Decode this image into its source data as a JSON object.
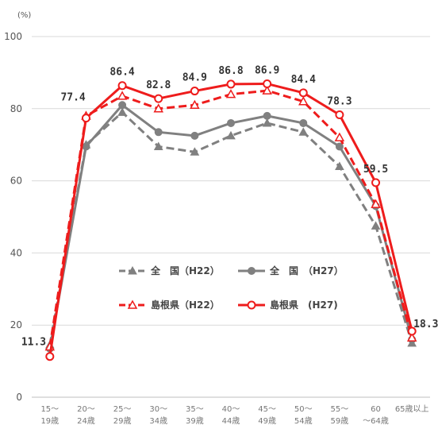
{
  "chart_data": {
    "type": "line",
    "unit_label": "(%)",
    "ylim": [
      0,
      100
    ],
    "yticks": [
      0,
      20,
      40,
      60,
      80,
      100
    ],
    "grid": true,
    "legend_position": "center",
    "categories": [
      [
        "15～",
        "19歳"
      ],
      [
        "20～",
        "24歳"
      ],
      [
        "25～",
        "29歳"
      ],
      [
        "30～",
        "34歳"
      ],
      [
        "35～",
        "39歳"
      ],
      [
        "40～",
        "44歳"
      ],
      [
        "45～",
        "49歳"
      ],
      [
        "50～",
        "54歳"
      ],
      [
        "55～",
        "59歳"
      ],
      [
        "60",
        "～64歳"
      ],
      [
        "65歳以上",
        ""
      ]
    ],
    "series": [
      {
        "name": "全　国（H22）",
        "color": "#808080",
        "dashed": true,
        "marker": "triangle-filled",
        "values": [
          14.5,
          70.0,
          79.0,
          69.5,
          68.0,
          72.5,
          76.0,
          73.5,
          64.0,
          47.5,
          15.0
        ]
      },
      {
        "name": "全　国　（H27）",
        "color": "#808080",
        "dashed": false,
        "marker": "circle-filled",
        "values": [
          13.5,
          69.5,
          81.0,
          73.5,
          72.5,
          76.0,
          78.0,
          76.0,
          69.5,
          53.0,
          16.0
        ]
      },
      {
        "name": "島根県（H22）",
        "color": "#ee1c1c",
        "dashed": true,
        "marker": "triangle-open",
        "values": [
          14.0,
          78.0,
          83.5,
          80.0,
          81.0,
          84.0,
          85.0,
          82.0,
          72.0,
          53.5,
          16.5
        ]
      },
      {
        "name": "島根県　(H27)",
        "color": "#ee1c1c",
        "dashed": false,
        "marker": "circle-open",
        "values": [
          11.3,
          77.4,
          86.4,
          82.8,
          84.9,
          86.8,
          86.9,
          84.4,
          78.3,
          59.5,
          18.3
        ]
      }
    ],
    "data_labels": [
      "11.3",
      "77.4",
      "86.4",
      "82.8",
      "84.9",
      "86.8",
      "86.9",
      "84.4",
      "78.3",
      "59.5",
      "18.3"
    ]
  }
}
